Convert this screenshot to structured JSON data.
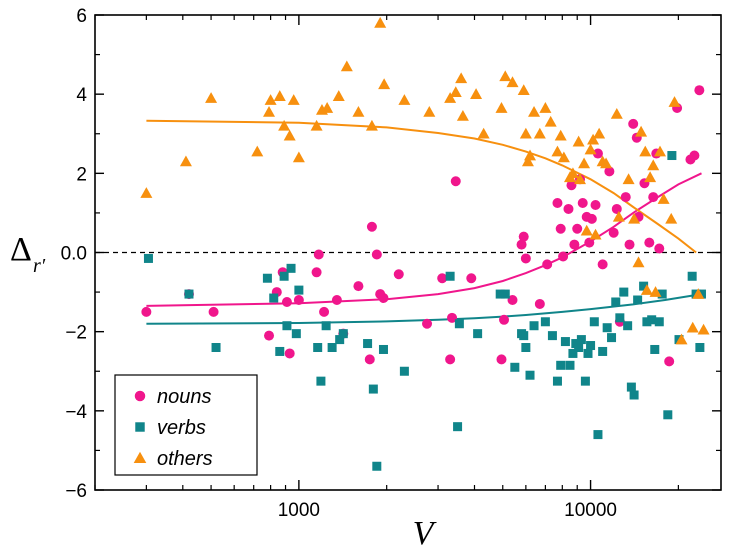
{
  "chart_data": {
    "type": "scatter",
    "xlabel": "V",
    "ylabel": {
      "main": "Δ",
      "sub": "r′"
    },
    "xscale": "log",
    "xlim": [
      200,
      28000
    ],
    "ylim": [
      -6,
      6
    ],
    "xticks": [
      1000,
      10000
    ],
    "xtick_labels": [
      "1000",
      "10000"
    ],
    "yticks": [
      -6,
      -4,
      -2,
      0,
      2,
      4,
      6
    ],
    "ytick_labels": [
      "−6",
      "−4",
      "−2",
      "0.0",
      "2",
      "4",
      "6"
    ],
    "reference_line": {
      "y": 0,
      "style": "dashed"
    },
    "legend_position": "bottom-left",
    "colors": {
      "nouns": "#f0168c",
      "verbs": "#10858a",
      "others": "#f7900f"
    },
    "series": [
      {
        "name": "nouns",
        "marker": "circle",
        "points": [
          [
            300,
            -1.5
          ],
          [
            420,
            -1.05
          ],
          [
            510,
            -1.5
          ],
          [
            790,
            -2.1
          ],
          [
            840,
            -1.0
          ],
          [
            880,
            -0.5
          ],
          [
            910,
            -1.25
          ],
          [
            930,
            -2.55
          ],
          [
            1000,
            -1.2
          ],
          [
            1150,
            -0.5
          ],
          [
            1170,
            -0.05
          ],
          [
            1220,
            -1.5
          ],
          [
            1350,
            -1.2
          ],
          [
            1420,
            -2.05
          ],
          [
            1600,
            -0.85
          ],
          [
            1750,
            -2.7
          ],
          [
            1780,
            0.65
          ],
          [
            1850,
            -0.05
          ],
          [
            1900,
            -1.05
          ],
          [
            1950,
            -1.15
          ],
          [
            2200,
            -0.55
          ],
          [
            2750,
            -1.8
          ],
          [
            3100,
            -0.65
          ],
          [
            3300,
            -2.7
          ],
          [
            3450,
            1.8
          ],
          [
            3350,
            -1.65
          ],
          [
            3900,
            -0.65
          ],
          [
            4950,
            -2.7
          ],
          [
            5050,
            -1.7
          ],
          [
            5400,
            -1.2
          ],
          [
            5800,
            0.2
          ],
          [
            5900,
            0.4
          ],
          [
            6000,
            -0.15
          ],
          [
            6700,
            -1.3
          ],
          [
            7100,
            -0.3
          ],
          [
            7700,
            1.25
          ],
          [
            7900,
            0.6
          ],
          [
            8050,
            -0.1
          ],
          [
            8400,
            1.1
          ],
          [
            8600,
            1.7
          ],
          [
            8800,
            0.2
          ],
          [
            9000,
            0.6
          ],
          [
            9200,
            1.85
          ],
          [
            9400,
            1.25
          ],
          [
            9700,
            0.9
          ],
          [
            9900,
            0.25
          ],
          [
            10100,
            0.85
          ],
          [
            10400,
            1.2
          ],
          [
            10600,
            2.5
          ],
          [
            11000,
            -0.3
          ],
          [
            11600,
            2.05
          ],
          [
            12000,
            0.5
          ],
          [
            12300,
            1.1
          ],
          [
            12600,
            -1.75
          ],
          [
            13200,
            1.4
          ],
          [
            13600,
            0.2
          ],
          [
            14000,
            3.25
          ],
          [
            14400,
            2.9
          ],
          [
            14600,
            0.9
          ],
          [
            15300,
            1.75
          ],
          [
            15900,
            0.25
          ],
          [
            16400,
            1.4
          ],
          [
            16800,
            2.5
          ],
          [
            17200,
            0.1
          ],
          [
            18600,
            -2.75
          ],
          [
            19800,
            3.65
          ],
          [
            22000,
            2.35
          ],
          [
            22700,
            2.45
          ],
          [
            23600,
            4.1
          ]
        ]
      },
      {
        "name": "verbs",
        "marker": "square",
        "points": [
          [
            305,
            -0.15
          ],
          [
            420,
            -1.05
          ],
          [
            520,
            -2.4
          ],
          [
            780,
            -0.65
          ],
          [
            820,
            -1.15
          ],
          [
            860,
            -2.5
          ],
          [
            890,
            -0.6
          ],
          [
            910,
            -1.85
          ],
          [
            940,
            -0.4
          ],
          [
            980,
            -2.05
          ],
          [
            1000,
            -0.95
          ],
          [
            1160,
            -2.4
          ],
          [
            1190,
            -3.25
          ],
          [
            1240,
            -1.85
          ],
          [
            1300,
            -2.4
          ],
          [
            1380,
            -2.2
          ],
          [
            1420,
            -2.05
          ],
          [
            1720,
            -2.3
          ],
          [
            1800,
            -3.45
          ],
          [
            1850,
            -5.4
          ],
          [
            1950,
            -2.45
          ],
          [
            2300,
            -3.0
          ],
          [
            3300,
            -0.6
          ],
          [
            3500,
            -4.4
          ],
          [
            3550,
            -1.8
          ],
          [
            4100,
            -2.05
          ],
          [
            4900,
            -1.05
          ],
          [
            5100,
            -1.05
          ],
          [
            5500,
            -2.9
          ],
          [
            5800,
            -2.05
          ],
          [
            5900,
            -2.1
          ],
          [
            6000,
            -2.4
          ],
          [
            6200,
            -3.1
          ],
          [
            6400,
            -1.85
          ],
          [
            7000,
            -1.75
          ],
          [
            7400,
            -2.1
          ],
          [
            7700,
            -3.25
          ],
          [
            7900,
            -2.85
          ],
          [
            8200,
            -2.25
          ],
          [
            8500,
            -2.85
          ],
          [
            8700,
            -2.55
          ],
          [
            8900,
            -2.3
          ],
          [
            9100,
            -2.4
          ],
          [
            9300,
            -2.2
          ],
          [
            9600,
            -3.25
          ],
          [
            9800,
            -2.55
          ],
          [
            10000,
            -2.35
          ],
          [
            10300,
            -1.75
          ],
          [
            10600,
            -4.6
          ],
          [
            11000,
            -2.5
          ],
          [
            11400,
            -1.9
          ],
          [
            11800,
            -2.15
          ],
          [
            12200,
            -1.25
          ],
          [
            12600,
            -1.65
          ],
          [
            13000,
            -1.0
          ],
          [
            13400,
            -1.85
          ],
          [
            13800,
            -3.4
          ],
          [
            14100,
            -3.6
          ],
          [
            14500,
            -1.2
          ],
          [
            15200,
            -0.85
          ],
          [
            15600,
            -1.75
          ],
          [
            16200,
            -1.7
          ],
          [
            16600,
            -2.45
          ],
          [
            17200,
            -1.75
          ],
          [
            17600,
            -1.05
          ],
          [
            18400,
            -4.1
          ],
          [
            19000,
            2.45
          ],
          [
            20100,
            -2.2
          ],
          [
            22300,
            -0.6
          ],
          [
            23000,
            -1.05
          ],
          [
            23700,
            -2.4
          ],
          [
            24000,
            -1.05
          ]
        ]
      },
      {
        "name": "others",
        "marker": "triangle",
        "points": [
          [
            300,
            1.5
          ],
          [
            410,
            2.3
          ],
          [
            500,
            3.9
          ],
          [
            720,
            2.55
          ],
          [
            790,
            3.55
          ],
          [
            800,
            3.85
          ],
          [
            860,
            3.95
          ],
          [
            890,
            3.2
          ],
          [
            930,
            2.95
          ],
          [
            960,
            3.85
          ],
          [
            1000,
            2.4
          ],
          [
            1150,
            3.2
          ],
          [
            1200,
            3.6
          ],
          [
            1250,
            3.65
          ],
          [
            1370,
            3.95
          ],
          [
            1460,
            4.7
          ],
          [
            1600,
            3.55
          ],
          [
            1780,
            3.2
          ],
          [
            1900,
            5.8
          ],
          [
            1960,
            4.25
          ],
          [
            2300,
            3.85
          ],
          [
            2800,
            3.55
          ],
          [
            3300,
            3.9
          ],
          [
            3450,
            4.05
          ],
          [
            3600,
            4.4
          ],
          [
            3650,
            3.45
          ],
          [
            4050,
            4.0
          ],
          [
            4300,
            3.0
          ],
          [
            4950,
            3.65
          ],
          [
            5100,
            4.45
          ],
          [
            5400,
            4.3
          ],
          [
            5900,
            4.1
          ],
          [
            6000,
            3.0
          ],
          [
            6100,
            2.3
          ],
          [
            6200,
            2.45
          ],
          [
            6400,
            3.55
          ],
          [
            6700,
            3.0
          ],
          [
            7000,
            3.65
          ],
          [
            7300,
            3.3
          ],
          [
            7700,
            2.55
          ],
          [
            7900,
            2.95
          ],
          [
            8100,
            2.4
          ],
          [
            8500,
            1.9
          ],
          [
            8700,
            2.0
          ],
          [
            9100,
            2.8
          ],
          [
            9200,
            1.85
          ],
          [
            9500,
            2.25
          ],
          [
            9700,
            0.55
          ],
          [
            10000,
            2.6
          ],
          [
            10200,
            2.85
          ],
          [
            10400,
            0.45
          ],
          [
            10700,
            3.0
          ],
          [
            11000,
            2.3
          ],
          [
            11300,
            2.25
          ],
          [
            12300,
            3.5
          ],
          [
            12500,
            0.9
          ],
          [
            13500,
            1.85
          ],
          [
            14100,
            0.85
          ],
          [
            14600,
            -0.25
          ],
          [
            14900,
            3.05
          ],
          [
            15400,
            2.55
          ],
          [
            15600,
            -0.95
          ],
          [
            16000,
            1.9
          ],
          [
            16400,
            2.2
          ],
          [
            16700,
            -1.0
          ],
          [
            17300,
            2.55
          ],
          [
            17800,
            1.35
          ],
          [
            18900,
            0.85
          ],
          [
            19400,
            3.8
          ],
          [
            20500,
            -2.2
          ],
          [
            22400,
            -1.9
          ],
          [
            23400,
            -1.05
          ],
          [
            24400,
            -1.95
          ]
        ]
      }
    ],
    "fit_curves": [
      {
        "series": "nouns",
        "points": [
          [
            300,
            -1.35
          ],
          [
            1000,
            -1.28
          ],
          [
            2000,
            -1.18
          ],
          [
            3000,
            -1.05
          ],
          [
            4000,
            -0.9
          ],
          [
            5000,
            -0.72
          ],
          [
            6000,
            -0.52
          ],
          [
            7000,
            -0.32
          ],
          [
            8000,
            -0.12
          ],
          [
            10000,
            0.28
          ],
          [
            12000,
            0.65
          ],
          [
            14000,
            1.0
          ],
          [
            17000,
            1.4
          ],
          [
            20000,
            1.72
          ],
          [
            24000,
            2.0
          ]
        ]
      },
      {
        "series": "verbs",
        "points": [
          [
            300,
            -1.8
          ],
          [
            1000,
            -1.78
          ],
          [
            2000,
            -1.74
          ],
          [
            3000,
            -1.7
          ],
          [
            4000,
            -1.66
          ],
          [
            5000,
            -1.62
          ],
          [
            6000,
            -1.58
          ],
          [
            8000,
            -1.5
          ],
          [
            10000,
            -1.43
          ],
          [
            14000,
            -1.31
          ],
          [
            18000,
            -1.2
          ],
          [
            24000,
            -1.05
          ]
        ]
      },
      {
        "series": "others",
        "points": [
          [
            300,
            3.33
          ],
          [
            1000,
            3.28
          ],
          [
            2000,
            3.16
          ],
          [
            3000,
            3.02
          ],
          [
            4000,
            2.88
          ],
          [
            5000,
            2.72
          ],
          [
            6000,
            2.55
          ],
          [
            7000,
            2.38
          ],
          [
            8000,
            2.2
          ],
          [
            10000,
            1.85
          ],
          [
            12000,
            1.5
          ],
          [
            14000,
            1.15
          ],
          [
            17000,
            0.72
          ],
          [
            20000,
            0.35
          ],
          [
            23000,
            0.0
          ]
        ]
      }
    ]
  }
}
